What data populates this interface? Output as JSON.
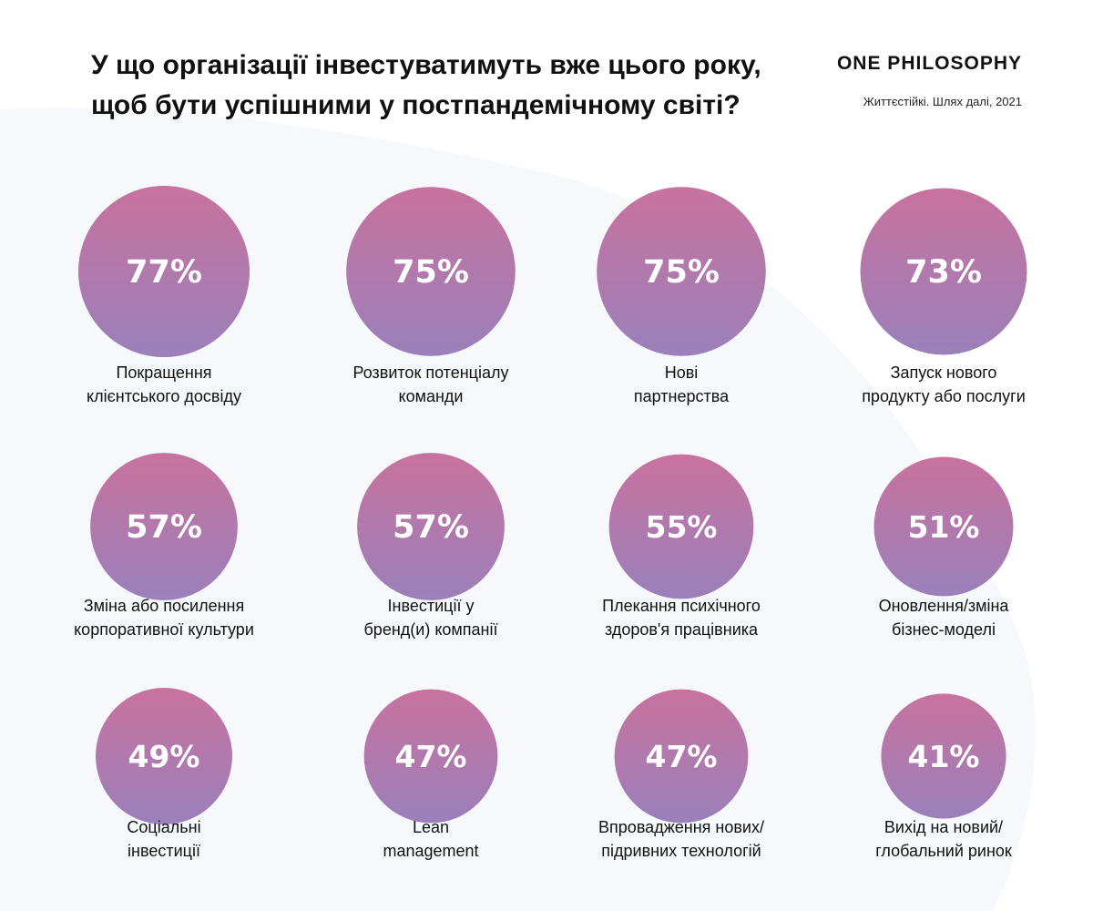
{
  "header": {
    "title_lines": [
      "У що організації інвестуватимуть вже цього року,",
      "щоб бути успішними у постпандемічному світі?"
    ],
    "brand": "ONE PHILOSOPHY",
    "source": "Життєстійкі. Шлях далі, 2021"
  },
  "colors": {
    "bubble_top": "#C8729E",
    "bubble_bottom": "#9A80BA",
    "text": "#111111",
    "background_shape": "#F7F8FC"
  },
  "chart_data": {
    "type": "bubble-grid",
    "unit": "%",
    "items": [
      {
        "value": 77,
        "label_lines": [
          "Покращення",
          "клієнтського досвіду"
        ]
      },
      {
        "value": 75,
        "label_lines": [
          "Розвиток потенціалу",
          "команди"
        ]
      },
      {
        "value": 75,
        "label_lines": [
          "Нові",
          "партнерства"
        ]
      },
      {
        "value": 73,
        "label_lines": [
          "Запуск нового",
          "продукту або послуги"
        ]
      },
      {
        "value": 57,
        "label_lines": [
          "Зміна або посилення",
          "корпоративної культури"
        ]
      },
      {
        "value": 57,
        "label_lines": [
          "Інвестиції у",
          "бренд(и) компанії"
        ]
      },
      {
        "value": 55,
        "label_lines": [
          "Плекання психічного",
          "здоров'я працівника"
        ]
      },
      {
        "value": 51,
        "label_lines": [
          "Оновлення/зміна",
          "бізнес-моделі"
        ]
      },
      {
        "value": 49,
        "label_lines": [
          "Соціальні",
          "інвестиції"
        ]
      },
      {
        "value": 47,
        "label_lines": [
          "Lean",
          "management"
        ]
      },
      {
        "value": 47,
        "label_lines": [
          "Впровадження нових/",
          "підривних технологій"
        ]
      },
      {
        "value": 41,
        "label_lines": [
          "Вихід на новий/",
          "глобальний ринок"
        ]
      }
    ]
  }
}
